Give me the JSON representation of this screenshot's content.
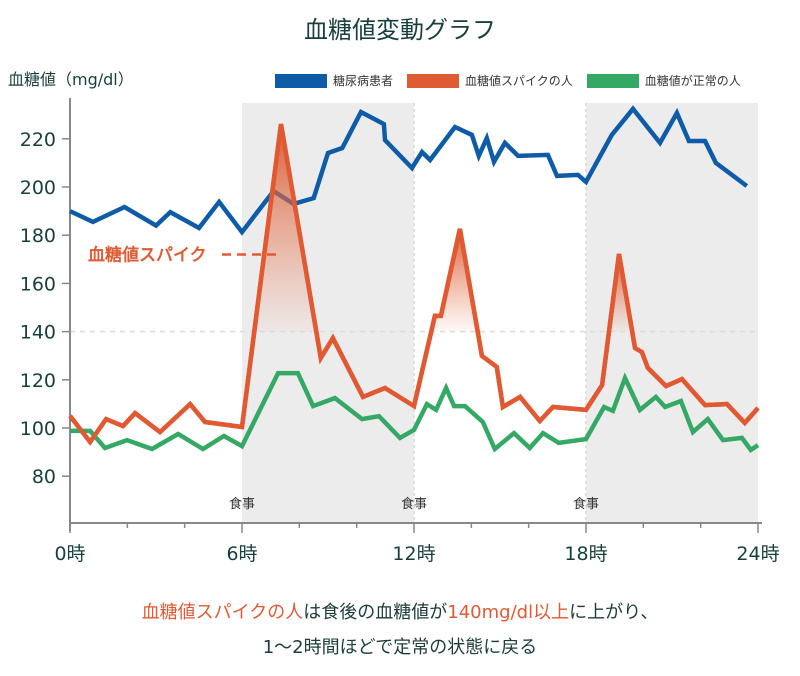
{
  "chart_data": {
    "type": "line",
    "title": "血糖値変動グラフ",
    "xlabel": "",
    "ylabel": "血糖値（mg/dl）",
    "xlim": [
      0,
      24
    ],
    "ylim": [
      60,
      235
    ],
    "x_ticks": [
      0,
      2,
      4,
      6,
      8,
      10,
      12,
      14,
      16,
      18,
      20,
      22,
      24
    ],
    "x_tick_labels": [
      {
        "x": 0,
        "label": "0時"
      },
      {
        "x": 6,
        "label": "6時"
      },
      {
        "x": 12,
        "label": "12時"
      },
      {
        "x": 18,
        "label": "18時"
      },
      {
        "x": 24,
        "label": "24時"
      }
    ],
    "y_ticks": [
      80,
      100,
      120,
      140,
      160,
      180,
      200,
      220
    ],
    "y_tick_labels": [
      "80",
      "100",
      "120",
      "140",
      "160",
      "180",
      "200",
      "220"
    ],
    "grid": false,
    "reference_line": {
      "y": 140,
      "style": "dashed"
    },
    "legend_position": "top-right",
    "meal_periods": [
      {
        "start": 6,
        "end": 12,
        "label": "食事"
      },
      {
        "start": 12,
        "end": 18,
        "label": "食事",
        "shaded": false
      },
      {
        "start": 18,
        "end": 24,
        "label": "食事"
      }
    ],
    "shaded_periods": [
      [
        6,
        12
      ],
      [
        18,
        24
      ]
    ],
    "series": [
      {
        "name": "糖尿病患者",
        "color": "#0e5ca8",
        "points": [
          [
            0,
            190
          ],
          [
            0.8,
            185.5
          ],
          [
            1.9,
            191.7
          ],
          [
            3.0,
            184
          ],
          [
            3.5,
            189.6
          ],
          [
            4.5,
            183
          ],
          [
            5.2,
            193.8
          ],
          [
            6.0,
            181.3
          ],
          [
            7.1,
            198.3
          ],
          [
            7.8,
            193
          ],
          [
            8.5,
            195.4
          ],
          [
            9.0,
            214.1
          ],
          [
            9.5,
            216.2
          ],
          [
            10.15,
            231.1
          ],
          [
            10.95,
            226.1
          ],
          [
            10.99,
            219.5
          ],
          [
            11.93,
            207.9
          ],
          [
            12.28,
            214.5
          ],
          [
            12.56,
            211.2
          ],
          [
            13.43,
            224.9
          ],
          [
            14.02,
            221.6
          ],
          [
            14.26,
            212.9
          ],
          [
            14.54,
            220.3
          ],
          [
            14.79,
            210.4
          ],
          [
            15.17,
            218.3
          ],
          [
            15.63,
            212.9
          ],
          [
            16.67,
            213.3
          ],
          [
            16.99,
            204.6
          ],
          [
            17.72,
            205
          ],
          [
            18.0,
            202.1
          ],
          [
            18.9,
            221.6
          ],
          [
            19.64,
            232.4
          ],
          [
            20.58,
            218.3
          ],
          [
            21.17,
            230.7
          ],
          [
            21.59,
            219.1
          ],
          [
            22.15,
            219.1
          ],
          [
            22.53,
            210
          ],
          [
            23.61,
            200.4
          ]
        ]
      },
      {
        "name": "血糖値スパイクの人",
        "color": "#e05a33",
        "points": [
          [
            0,
            105
          ],
          [
            0.7,
            94.2
          ],
          [
            1.26,
            103.7
          ],
          [
            1.85,
            100.8
          ],
          [
            2.27,
            106.2
          ],
          [
            3.14,
            98.3
          ],
          [
            4.19,
            109.9
          ],
          [
            4.71,
            102.5
          ],
          [
            6.0,
            100.4
          ],
          [
            7.36,
            226.1
          ],
          [
            8.75,
            129
          ],
          [
            9.17,
            137.3
          ],
          [
            10.22,
            112.9
          ],
          [
            10.99,
            116.6
          ],
          [
            12.0,
            109.1
          ],
          [
            12.73,
            146.5
          ],
          [
            12.94,
            146.5
          ],
          [
            13.6,
            182.6
          ],
          [
            14.37,
            129.9
          ],
          [
            14.89,
            125.3
          ],
          [
            15.1,
            108.7
          ],
          [
            15.7,
            112.9
          ],
          [
            16.39,
            102.9
          ],
          [
            16.85,
            108.7
          ],
          [
            18.0,
            107.5
          ],
          [
            18.56,
            117.8
          ],
          [
            19.15,
            172.2
          ],
          [
            19.71,
            133.2
          ],
          [
            19.95,
            131.5
          ],
          [
            20.16,
            124.9
          ],
          [
            20.79,
            117.4
          ],
          [
            21.35,
            120.3
          ],
          [
            22.15,
            109.5
          ],
          [
            22.92,
            109.9
          ],
          [
            23.54,
            102.1
          ],
          [
            24.0,
            108.3
          ]
        ]
      },
      {
        "name": "血糖値が正常の人",
        "color": "#35a865",
        "points": [
          [
            0,
            98.8
          ],
          [
            0.7,
            98.8
          ],
          [
            1.22,
            91.7
          ],
          [
            1.99,
            95
          ],
          [
            2.86,
            91.3
          ],
          [
            3.77,
            97.5
          ],
          [
            4.64,
            91.3
          ],
          [
            5.37,
            96.7
          ],
          [
            6.0,
            92.5
          ],
          [
            7.26,
            122.8
          ],
          [
            7.95,
            122.8
          ],
          [
            8.48,
            109.1
          ],
          [
            9.24,
            112.4
          ],
          [
            10.19,
            103.7
          ],
          [
            10.78,
            104.9
          ],
          [
            11.51,
            95.9
          ],
          [
            12.0,
            99.2
          ],
          [
            12.45,
            109.9
          ],
          [
            12.77,
            107.5
          ],
          [
            13.12,
            116.6
          ],
          [
            13.4,
            109.1
          ],
          [
            13.78,
            109.1
          ],
          [
            14.4,
            102.5
          ],
          [
            14.82,
            91.3
          ],
          [
            15.49,
            97.9
          ],
          [
            16.04,
            91.7
          ],
          [
            16.5,
            97.9
          ],
          [
            17.05,
            93.8
          ],
          [
            18.0,
            95.4
          ],
          [
            18.63,
            108.7
          ],
          [
            18.94,
            107.1
          ],
          [
            19.36,
            120.7
          ],
          [
            19.88,
            107.5
          ],
          [
            20.44,
            112.9
          ],
          [
            20.76,
            108.7
          ],
          [
            21.31,
            111.2
          ],
          [
            21.73,
            98.3
          ],
          [
            22.25,
            103.7
          ],
          [
            22.78,
            95
          ],
          [
            23.44,
            95.9
          ],
          [
            23.75,
            90.9
          ],
          [
            24.0,
            92.9
          ]
        ]
      }
    ],
    "spike_fills": [
      {
        "peak_x": 7.36,
        "peak_y": 226.1,
        "threshold": 140
      },
      {
        "peak_x": 13.6,
        "peak_y": 182.6,
        "threshold": 140
      },
      {
        "peak_x": 19.15,
        "peak_y": 172.2,
        "threshold": 140
      }
    ],
    "annotations": [
      {
        "text": "血糖値スパイク",
        "color": "#e05a33",
        "points_to_hour": 7.36,
        "at_value": 172
      }
    ]
  },
  "page": {
    "title": "血糖値変動グラフ",
    "ylabel": "血糖値（mg/dl）",
    "legend": [
      {
        "label": "糖尿病患者",
        "color": "#0e5ca8"
      },
      {
        "label": "血糖値スパイクの人",
        "color": "#e05a33"
      },
      {
        "label": "血糖値が正常の人",
        "color": "#35a865"
      }
    ],
    "caption": {
      "line1_hl1": "血糖値スパイクの人",
      "line1_mid": "は食後の血糖値が",
      "line1_hl2": "140mg/dl以上",
      "line1_end": "に上がり、",
      "line2": "1〜2時間ほどで定常の状態に戻る"
    }
  }
}
